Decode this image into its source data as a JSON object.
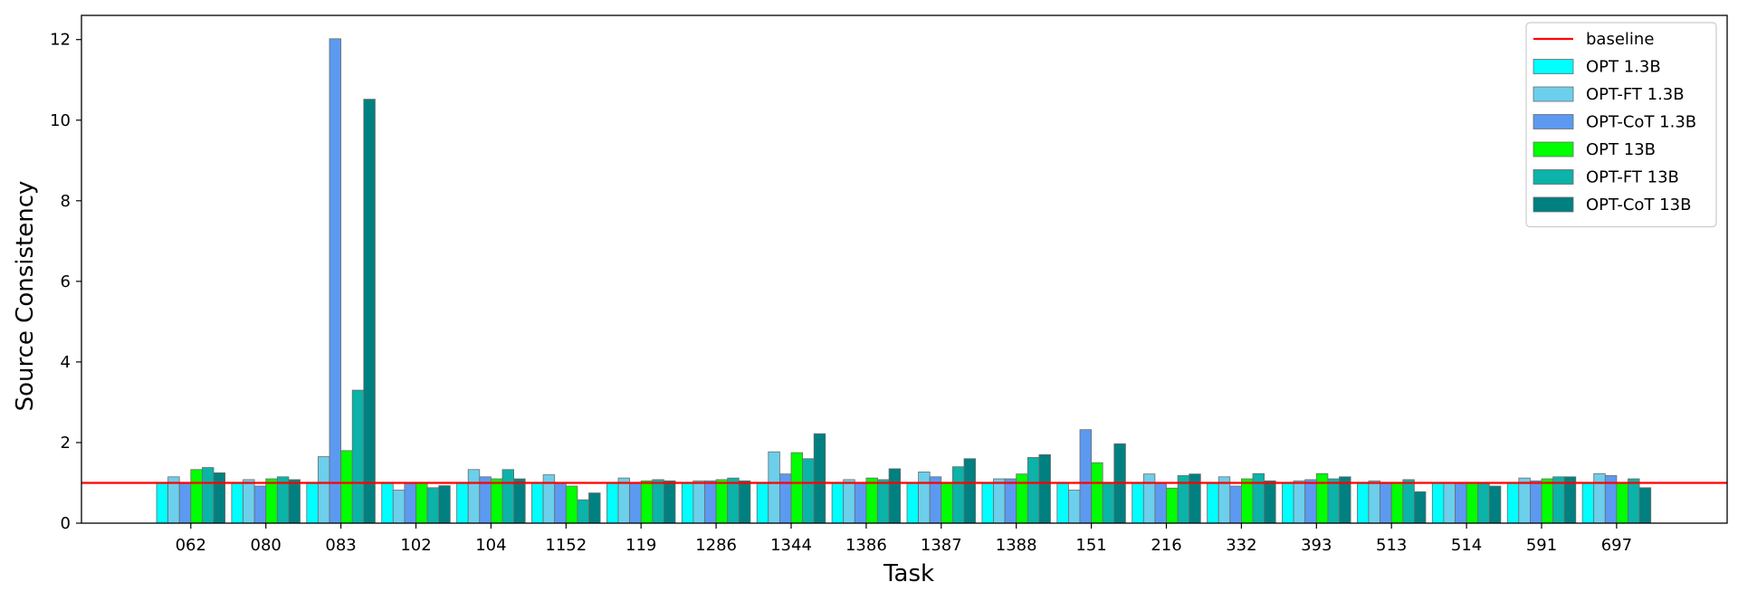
{
  "chart_data": {
    "type": "bar",
    "title": "",
    "xlabel": "Task",
    "ylabel": "Source Consistency",
    "ylim": [
      0,
      12.6
    ],
    "yticks": [
      0,
      2,
      4,
      6,
      8,
      10,
      12
    ],
    "grid": false,
    "legend_position": "top-right",
    "categories": [
      "062",
      "080",
      "083",
      "102",
      "104",
      "1152",
      "119",
      "1286",
      "1344",
      "1386",
      "1387",
      "1388",
      "151",
      "216",
      "332",
      "393",
      "513",
      "514",
      "591",
      "697"
    ],
    "baseline": {
      "name": "baseline",
      "value": 1.0,
      "color": "#ff0000"
    },
    "series": [
      {
        "name": "OPT 1.3B",
        "color": "#00ffff",
        "values": [
          1.0,
          1.0,
          1.0,
          1.0,
          1.0,
          1.0,
          1.0,
          1.0,
          1.0,
          1.0,
          1.0,
          1.0,
          1.0,
          1.0,
          1.0,
          1.0,
          1.0,
          1.0,
          1.0,
          1.0
        ]
      },
      {
        "name": "OPT-FT 1.3B",
        "color": "#6ccfeb",
        "values": [
          1.15,
          1.08,
          1.65,
          0.82,
          1.33,
          1.2,
          1.12,
          1.05,
          1.77,
          1.08,
          1.27,
          1.1,
          0.82,
          1.22,
          1.15,
          1.05,
          1.05,
          1.0,
          1.12,
          1.23
        ]
      },
      {
        "name": "OPT-CoT 1.3B",
        "color": "#5b9af0",
        "values": [
          1.0,
          0.92,
          12.02,
          1.0,
          1.15,
          1.0,
          1.0,
          1.05,
          1.22,
          1.0,
          1.15,
          1.1,
          2.32,
          1.0,
          0.92,
          1.08,
          1.0,
          1.0,
          1.05,
          1.18
        ]
      },
      {
        "name": "OPT 13B",
        "color": "#00ff00",
        "values": [
          1.33,
          1.1,
          1.8,
          1.0,
          1.1,
          0.92,
          1.05,
          1.08,
          1.75,
          1.12,
          1.0,
          1.22,
          1.5,
          0.87,
          1.1,
          1.23,
          1.0,
          1.0,
          1.1,
          1.0
        ]
      },
      {
        "name": "OPT-FT 13B",
        "color": "#0bb3a8",
        "values": [
          1.38,
          1.15,
          3.3,
          0.88,
          1.33,
          0.58,
          1.08,
          1.12,
          1.6,
          1.08,
          1.4,
          1.63,
          1.0,
          1.18,
          1.23,
          1.1,
          1.08,
          1.0,
          1.15,
          1.1
        ]
      },
      {
        "name": "OPT-CoT 13B",
        "color": "#008080",
        "values": [
          1.25,
          1.08,
          10.52,
          0.93,
          1.1,
          0.75,
          1.05,
          1.05,
          2.22,
          1.35,
          1.6,
          1.7,
          1.97,
          1.22,
          1.05,
          1.15,
          0.78,
          0.92,
          1.15,
          0.88
        ]
      }
    ]
  }
}
